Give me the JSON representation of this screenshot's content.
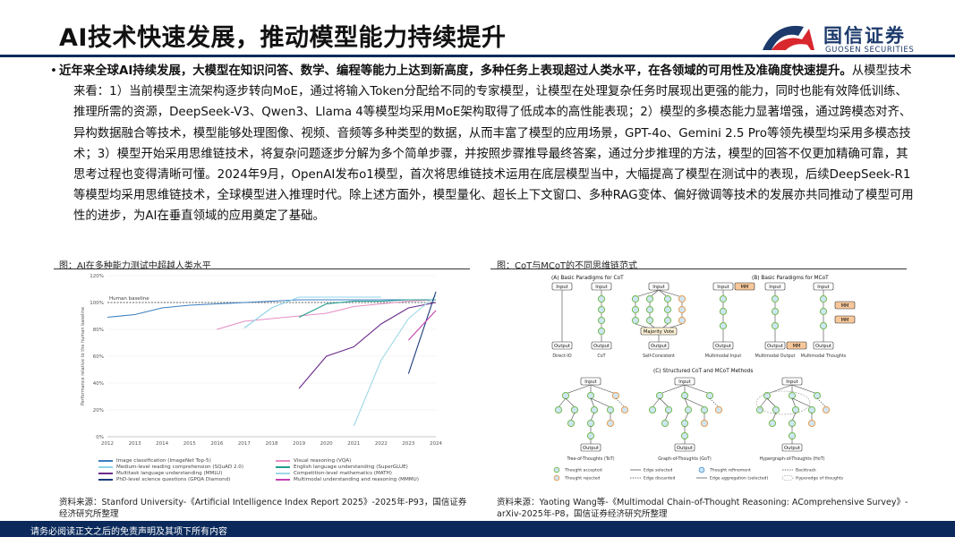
{
  "header": {
    "title": "AI技术快速发展，推动模型能力持续提升",
    "logo_cn": "国信证券",
    "logo_en": "GUOSEN SECURITIES"
  },
  "body": {
    "bullet": "•",
    "lead": "近年来全球AI持续发展，大模型在知识问答、数学、编程等能力上达到新高度，多种任务上表现超过人类水平，在各领域的可用性及准确度快速提升。",
    "rest": "从模型技术来看：1）当前模型主流架构逐步转向MoE，通过将输入Token分配给不同的专家模型，让模型在处理复杂任务时展现出更强的能力，同时也能有效降低训练、推理所需的资源，DeepSeek-V3、Qwen3、Llama 4等模型均采用MoE架构取得了低成本的高性能表现；2）模型的多模态能力显著增强，通过跨模态对齐、异构数据融合等技术，模型能够处理图像、视频、音频等多种类型的数据，从而丰富了模型的应用场景，GPT-4o、Gemini 2.5 Pro等领先模型均采用多模态技术；3）模型开始采用思维链技术，将复杂问题逐步分解为多个简单步骤，并按照步骤推导最终答案，通过分步推理的方法，模型的回答不仅更加精确可靠，其思考过程也变得清晰可懂。2024年9月，OpenAI发布o1模型，首次将思维链技术运用在底层模型当中，大幅提高了模型在测试中的表现，后续DeepSeek-R1等模型均采用思维链技术，全球模型进入推理时代。除上述方面外，模型量化、超长上下文窗口、多种RAG变体、偏好微调等技术的发展亦共同推动了模型可用性的进步，为AI在垂直领域的应用奠定了基础。"
  },
  "figure_left": {
    "title": "图：AI在多种能力测试中超越人类水平",
    "source": "资料来源：Stanford University-《Artificial Intelligence Index Report 2025》-2025年-P93，国信证券经济研究所整理"
  },
  "figure_right": {
    "title": "图：CoT与MCoT的不同思维链范式",
    "source": "资料来源：Yaoting Wang等-《Multimodal Chain-of-Thought Reasoning: AComprehensive Survey》-arXiv-2025年-P8，国信证券经济研究所整理",
    "section_a": "(A) Basic Paradigms for CoT",
    "section_b": "(B) Basic Paradigms for MCoT",
    "section_c": "(C) Structured CoT and MCoT Methods",
    "input": "Input",
    "output": "Output",
    "mm": "MM",
    "majority_vote": "Majority Vote",
    "captions_top": [
      "Direct-IO",
      "CoT",
      "Self-Consistent",
      "Multimodal Input",
      "Multimodal Output",
      "Multimodal Thoughts"
    ],
    "captions_bottom": [
      "Tree-of-Thoughts (ToT)",
      "Graph-of-Thoughts (GoT)",
      "Hypergraph-of-Thoughts (HoT)"
    ],
    "legend": [
      "Thought accepted",
      "Thought rejected",
      "Edge selected",
      "Edge discarded",
      "Thought refinement",
      "Edge aggregation (selected)",
      "Backtrack",
      "Hyperedge of thoughts"
    ],
    "colors": {
      "accepted": "#7dbf5a",
      "rejected": "#e8a25a",
      "node_fill": "#cfe6f7",
      "mm_fill": "#f6c79a"
    }
  },
  "chart_data": {
    "type": "line",
    "title": "",
    "xlabel": "",
    "ylabel": "Performance relative to the human baseline",
    "x_ticks": [
      "2012",
      "2013",
      "2014",
      "2015",
      "2016",
      "2017",
      "2018",
      "2019",
      "2020",
      "2021",
      "2022",
      "2023",
      "2024"
    ],
    "y_ticks": [
      "0%",
      "20%",
      "40%",
      "60%",
      "80%",
      "100%",
      "120%"
    ],
    "xlim": [
      2012,
      2024
    ],
    "ylim": [
      0,
      120
    ],
    "baseline": {
      "label": "Human baseline",
      "value": 100
    },
    "series": [
      {
        "name": "Image classification (ImageNet Top-5)",
        "color": "#3a7fc1",
        "points": [
          [
            2012,
            89
          ],
          [
            2013,
            91
          ],
          [
            2014,
            96
          ],
          [
            2015,
            98
          ],
          [
            2016,
            99
          ],
          [
            2017,
            100
          ],
          [
            2018,
            101
          ],
          [
            2019,
            102
          ],
          [
            2020,
            102
          ],
          [
            2021,
            102
          ],
          [
            2022,
            102
          ],
          [
            2023,
            102
          ],
          [
            2024,
            102
          ]
        ]
      },
      {
        "name": "Visual reasoning (VQA)",
        "color": "#e58fc3",
        "points": [
          [
            2016,
            80
          ],
          [
            2017,
            86
          ],
          [
            2018,
            88
          ],
          [
            2019,
            90
          ],
          [
            2020,
            92
          ],
          [
            2021,
            97
          ],
          [
            2022,
            99
          ],
          [
            2023,
            101
          ],
          [
            2024,
            102
          ]
        ]
      },
      {
        "name": "Medium-level reading comprehension (SQuAD 2.0)",
        "color": "#8fd3e8",
        "points": [
          [
            2017,
            81
          ],
          [
            2018,
            96
          ],
          [
            2019,
            104
          ],
          [
            2020,
            104
          ],
          [
            2021,
            104
          ],
          [
            2022,
            104
          ]
        ]
      },
      {
        "name": "English language understanding (SuperGLUE)",
        "color": "#1f9e8f",
        "points": [
          [
            2019,
            89
          ],
          [
            2020,
            99
          ],
          [
            2021,
            101
          ],
          [
            2022,
            101
          ],
          [
            2023,
            102
          ],
          [
            2024,
            102
          ]
        ]
      },
      {
        "name": "Multitask language understanding (MMLU)",
        "color": "#6b2a8c",
        "points": [
          [
            2019,
            36
          ],
          [
            2020,
            60
          ],
          [
            2021,
            67
          ],
          [
            2022,
            84
          ],
          [
            2023,
            96
          ],
          [
            2024,
            100
          ]
        ]
      },
      {
        "name": "Competition-level mathematics (MATH)",
        "color": "#9fd8e6",
        "points": [
          [
            2021,
            8
          ],
          [
            2022,
            57
          ],
          [
            2023,
            88
          ],
          [
            2024,
            105
          ]
        ]
      },
      {
        "name": "PhD-level science questions (GPQA Diamond)",
        "color": "#1a3a7a",
        "points": [
          [
            2023,
            47
          ],
          [
            2024,
            108
          ]
        ]
      },
      {
        "name": "Multimodal understanding and reasoning (MMMU)",
        "color": "#c43fb0",
        "points": [
          [
            2023,
            72
          ],
          [
            2024,
            94
          ]
        ]
      }
    ]
  },
  "footer": {
    "disclaimer": "请务必阅读正文之后的免责声明及其项下所有内容"
  }
}
